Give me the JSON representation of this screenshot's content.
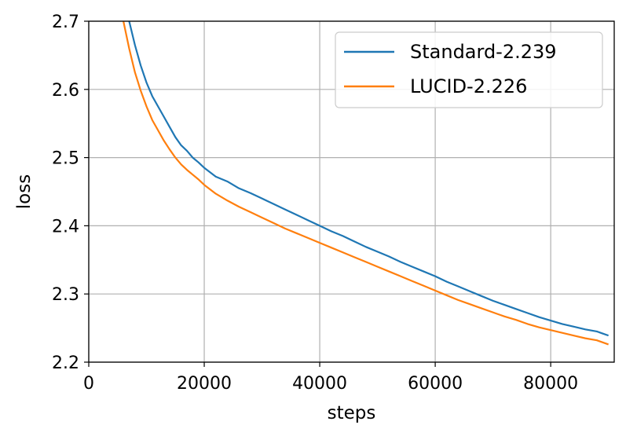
{
  "chart_data": {
    "type": "line",
    "xlabel": "steps",
    "ylabel": "loss",
    "xlim": [
      0,
      91000
    ],
    "ylim": [
      2.2,
      2.7
    ],
    "xticks": [
      0,
      20000,
      40000,
      60000,
      80000
    ],
    "xtick_labels": [
      "0",
      "20000",
      "40000",
      "60000",
      "80000"
    ],
    "yticks": [
      2.2,
      2.3,
      2.4,
      2.5,
      2.6,
      2.7
    ],
    "ytick_labels": [
      "2.2",
      "2.3",
      "2.4",
      "2.5",
      "2.6",
      "2.7"
    ],
    "grid": true,
    "legend_position": "top-right",
    "series": [
      {
        "name": "Standard-2.239",
        "color": "#1f77b4",
        "x": [
          7000,
          8000,
          9000,
          10000,
          11000,
          12000,
          13000,
          14000,
          15000,
          16000,
          17000,
          18000,
          19000,
          20000,
          22000,
          24000,
          26000,
          28000,
          30000,
          32000,
          34000,
          36000,
          38000,
          40000,
          42000,
          44000,
          46000,
          48000,
          50000,
          52000,
          54000,
          56000,
          58000,
          60000,
          62000,
          64000,
          66000,
          68000,
          70000,
          72000,
          74000,
          76000,
          78000,
          80000,
          82000,
          84000,
          86000,
          88000,
          89000,
          90000
        ],
        "y": [
          2.7,
          2.665,
          2.635,
          2.61,
          2.59,
          2.575,
          2.56,
          2.545,
          2.53,
          2.518,
          2.51,
          2.5,
          2.493,
          2.485,
          2.472,
          2.465,
          2.455,
          2.448,
          2.44,
          2.432,
          2.424,
          2.416,
          2.408,
          2.4,
          2.392,
          2.385,
          2.377,
          2.369,
          2.362,
          2.355,
          2.347,
          2.34,
          2.333,
          2.326,
          2.318,
          2.311,
          2.304,
          2.297,
          2.29,
          2.284,
          2.278,
          2.272,
          2.266,
          2.261,
          2.256,
          2.252,
          2.248,
          2.245,
          2.242,
          2.239
        ]
      },
      {
        "name": "LUCID-2.226",
        "color": "#ff7f0e",
        "x": [
          6000,
          7000,
          8000,
          9000,
          10000,
          11000,
          12000,
          13000,
          14000,
          15000,
          16000,
          17000,
          18000,
          19000,
          20000,
          22000,
          24000,
          26000,
          28000,
          30000,
          32000,
          34000,
          36000,
          38000,
          40000,
          42000,
          44000,
          46000,
          48000,
          50000,
          52000,
          54000,
          56000,
          58000,
          60000,
          62000,
          64000,
          66000,
          68000,
          70000,
          72000,
          74000,
          76000,
          78000,
          80000,
          82000,
          84000,
          86000,
          88000,
          89000,
          90000
        ],
        "y": [
          2.7,
          2.66,
          2.625,
          2.598,
          2.575,
          2.555,
          2.54,
          2.525,
          2.512,
          2.5,
          2.49,
          2.482,
          2.475,
          2.468,
          2.46,
          2.447,
          2.437,
          2.428,
          2.42,
          2.412,
          2.404,
          2.396,
          2.389,
          2.382,
          2.375,
          2.368,
          2.361,
          2.354,
          2.347,
          2.34,
          2.333,
          2.326,
          2.319,
          2.312,
          2.305,
          2.298,
          2.291,
          2.285,
          2.279,
          2.273,
          2.267,
          2.262,
          2.256,
          2.251,
          2.247,
          2.243,
          2.239,
          2.235,
          2.232,
          2.229,
          2.226
        ]
      }
    ]
  }
}
